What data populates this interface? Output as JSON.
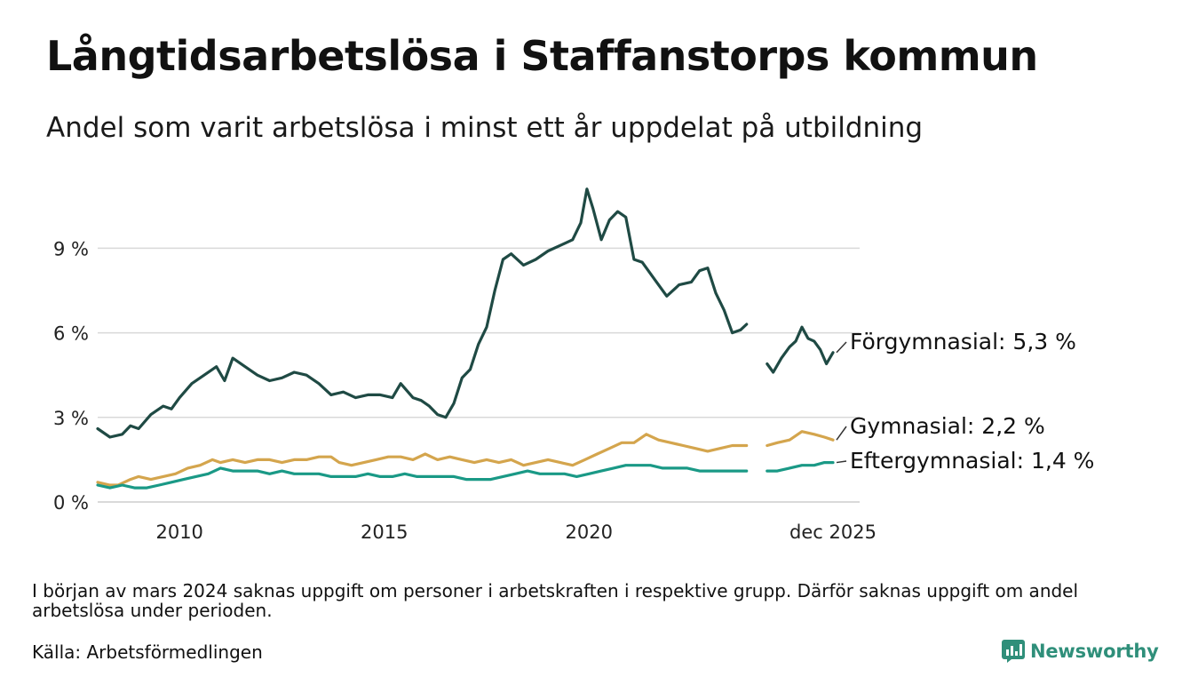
{
  "header": {
    "title": "Långtidsarbetslösa i Staffanstorps kommun",
    "subtitle": "Andel som varit arbetslösa i minst ett år uppdelat på utbildning"
  },
  "footer": {
    "note": "I början av mars 2024 saknas uppgift om personer i arbetskraften i respektive grupp. Därför saknas uppgift om andel arbetslösa under perioden.",
    "source": "Källa: Arbetsförmedlingen",
    "brand": "Newsworthy"
  },
  "colors": {
    "forgymnasial": "#1f4a44",
    "gymnasial": "#d4a54d",
    "eftergymnasial": "#1a9986",
    "grid": "#d9d9d9",
    "brand": "#2f8f7a"
  },
  "chart_data": {
    "type": "line",
    "title": "Långtidsarbetslösa i Staffanstorps kommun",
    "xlabel": "",
    "ylabel": "",
    "ylim": [
      0,
      11.5
    ],
    "xlim": [
      2008.0,
      2025.96
    ],
    "y_ticks": [
      {
        "value": 0,
        "label": "0 %"
      },
      {
        "value": 3,
        "label": "3 %"
      },
      {
        "value": 6,
        "label": "6 %"
      },
      {
        "value": 9,
        "label": "9 %"
      }
    ],
    "x_ticks": [
      {
        "value": 2010,
        "label": "2010"
      },
      {
        "value": 2015,
        "label": "2015"
      },
      {
        "value": 2020,
        "label": "2020"
      },
      {
        "value": 2025.96,
        "label": "dec 2025"
      }
    ],
    "grid": true,
    "gap": {
      "from": 2024.0,
      "to": 2024.35
    },
    "series": [
      {
        "name": "Förgymnasial",
        "end_label": "Förgymnasial: 5,3 %",
        "color_key": "forgymnasial",
        "points": [
          [
            2008.0,
            2.6
          ],
          [
            2008.3,
            2.3
          ],
          [
            2008.6,
            2.4
          ],
          [
            2008.8,
            2.7
          ],
          [
            2009.0,
            2.6
          ],
          [
            2009.3,
            3.1
          ],
          [
            2009.6,
            3.4
          ],
          [
            2009.8,
            3.3
          ],
          [
            2010.0,
            3.7
          ],
          [
            2010.3,
            4.2
          ],
          [
            2010.6,
            4.5
          ],
          [
            2010.9,
            4.8
          ],
          [
            2011.1,
            4.3
          ],
          [
            2011.3,
            5.1
          ],
          [
            2011.6,
            4.8
          ],
          [
            2011.9,
            4.5
          ],
          [
            2012.2,
            4.3
          ],
          [
            2012.5,
            4.4
          ],
          [
            2012.8,
            4.6
          ],
          [
            2013.1,
            4.5
          ],
          [
            2013.4,
            4.2
          ],
          [
            2013.7,
            3.8
          ],
          [
            2014.0,
            3.9
          ],
          [
            2014.3,
            3.7
          ],
          [
            2014.6,
            3.8
          ],
          [
            2014.9,
            3.8
          ],
          [
            2015.2,
            3.7
          ],
          [
            2015.4,
            4.2
          ],
          [
            2015.7,
            3.7
          ],
          [
            2015.9,
            3.6
          ],
          [
            2016.1,
            3.4
          ],
          [
            2016.3,
            3.1
          ],
          [
            2016.5,
            3.0
          ],
          [
            2016.7,
            3.5
          ],
          [
            2016.9,
            4.4
          ],
          [
            2017.1,
            4.7
          ],
          [
            2017.3,
            5.6
          ],
          [
            2017.5,
            6.2
          ],
          [
            2017.7,
            7.5
          ],
          [
            2017.9,
            8.6
          ],
          [
            2018.1,
            8.8
          ],
          [
            2018.4,
            8.4
          ],
          [
            2018.7,
            8.6
          ],
          [
            2019.0,
            8.9
          ],
          [
            2019.3,
            9.1
          ],
          [
            2019.6,
            9.3
          ],
          [
            2019.8,
            9.9
          ],
          [
            2019.95,
            11.1
          ],
          [
            2020.1,
            10.4
          ],
          [
            2020.3,
            9.3
          ],
          [
            2020.5,
            10.0
          ],
          [
            2020.7,
            10.3
          ],
          [
            2020.9,
            10.1
          ],
          [
            2021.1,
            8.6
          ],
          [
            2021.3,
            8.5
          ],
          [
            2021.6,
            7.9
          ],
          [
            2021.9,
            7.3
          ],
          [
            2022.2,
            7.7
          ],
          [
            2022.5,
            7.8
          ],
          [
            2022.7,
            8.2
          ],
          [
            2022.9,
            8.3
          ],
          [
            2023.1,
            7.4
          ],
          [
            2023.3,
            6.8
          ],
          [
            2023.5,
            6.0
          ],
          [
            2023.7,
            6.1
          ],
          [
            2023.85,
            6.3
          ],
          [
            2024.35,
            4.9
          ],
          [
            2024.5,
            4.6
          ],
          [
            2024.7,
            5.1
          ],
          [
            2024.9,
            5.5
          ],
          [
            2025.05,
            5.7
          ],
          [
            2025.2,
            6.2
          ],
          [
            2025.35,
            5.8
          ],
          [
            2025.5,
            5.7
          ],
          [
            2025.65,
            5.4
          ],
          [
            2025.8,
            4.9
          ],
          [
            2025.96,
            5.3
          ]
        ]
      },
      {
        "name": "Gymnasial",
        "end_label": "Gymnasial: 2,2 %",
        "color_key": "gymnasial",
        "points": [
          [
            2008.0,
            0.7
          ],
          [
            2008.3,
            0.6
          ],
          [
            2008.5,
            0.6
          ],
          [
            2008.8,
            0.8
          ],
          [
            2009.0,
            0.9
          ],
          [
            2009.3,
            0.8
          ],
          [
            2009.6,
            0.9
          ],
          [
            2009.9,
            1.0
          ],
          [
            2010.2,
            1.2
          ],
          [
            2010.5,
            1.3
          ],
          [
            2010.8,
            1.5
          ],
          [
            2011.0,
            1.4
          ],
          [
            2011.3,
            1.5
          ],
          [
            2011.6,
            1.4
          ],
          [
            2011.9,
            1.5
          ],
          [
            2012.2,
            1.5
          ],
          [
            2012.5,
            1.4
          ],
          [
            2012.8,
            1.5
          ],
          [
            2013.1,
            1.5
          ],
          [
            2013.4,
            1.6
          ],
          [
            2013.7,
            1.6
          ],
          [
            2013.9,
            1.4
          ],
          [
            2014.2,
            1.3
          ],
          [
            2014.5,
            1.4
          ],
          [
            2014.8,
            1.5
          ],
          [
            2015.1,
            1.6
          ],
          [
            2015.4,
            1.6
          ],
          [
            2015.7,
            1.5
          ],
          [
            2016.0,
            1.7
          ],
          [
            2016.3,
            1.5
          ],
          [
            2016.6,
            1.6
          ],
          [
            2016.9,
            1.5
          ],
          [
            2017.2,
            1.4
          ],
          [
            2017.5,
            1.5
          ],
          [
            2017.8,
            1.4
          ],
          [
            2018.1,
            1.5
          ],
          [
            2018.4,
            1.3
          ],
          [
            2018.7,
            1.4
          ],
          [
            2019.0,
            1.5
          ],
          [
            2019.3,
            1.4
          ],
          [
            2019.6,
            1.3
          ],
          [
            2019.9,
            1.5
          ],
          [
            2020.2,
            1.7
          ],
          [
            2020.5,
            1.9
          ],
          [
            2020.8,
            2.1
          ],
          [
            2021.1,
            2.1
          ],
          [
            2021.4,
            2.4
          ],
          [
            2021.7,
            2.2
          ],
          [
            2022.0,
            2.1
          ],
          [
            2022.3,
            2.0
          ],
          [
            2022.6,
            1.9
          ],
          [
            2022.9,
            1.8
          ],
          [
            2023.2,
            1.9
          ],
          [
            2023.5,
            2.0
          ],
          [
            2023.85,
            2.0
          ],
          [
            2024.35,
            2.0
          ],
          [
            2024.6,
            2.1
          ],
          [
            2024.9,
            2.2
          ],
          [
            2025.2,
            2.5
          ],
          [
            2025.5,
            2.4
          ],
          [
            2025.75,
            2.3
          ],
          [
            2025.96,
            2.2
          ]
        ]
      },
      {
        "name": "Eftergymnasial",
        "end_label": "Eftergymnasial: 1,4 %",
        "color_key": "eftergymnasial",
        "points": [
          [
            2008.0,
            0.6
          ],
          [
            2008.3,
            0.5
          ],
          [
            2008.6,
            0.6
          ],
          [
            2008.9,
            0.5
          ],
          [
            2009.2,
            0.5
          ],
          [
            2009.5,
            0.6
          ],
          [
            2009.8,
            0.7
          ],
          [
            2010.1,
            0.8
          ],
          [
            2010.4,
            0.9
          ],
          [
            2010.7,
            1.0
          ],
          [
            2011.0,
            1.2
          ],
          [
            2011.3,
            1.1
          ],
          [
            2011.6,
            1.1
          ],
          [
            2011.9,
            1.1
          ],
          [
            2012.2,
            1.0
          ],
          [
            2012.5,
            1.1
          ],
          [
            2012.8,
            1.0
          ],
          [
            2013.1,
            1.0
          ],
          [
            2013.4,
            1.0
          ],
          [
            2013.7,
            0.9
          ],
          [
            2014.0,
            0.9
          ],
          [
            2014.3,
            0.9
          ],
          [
            2014.6,
            1.0
          ],
          [
            2014.9,
            0.9
          ],
          [
            2015.2,
            0.9
          ],
          [
            2015.5,
            1.0
          ],
          [
            2015.8,
            0.9
          ],
          [
            2016.1,
            0.9
          ],
          [
            2016.4,
            0.9
          ],
          [
            2016.7,
            0.9
          ],
          [
            2017.0,
            0.8
          ],
          [
            2017.3,
            0.8
          ],
          [
            2017.6,
            0.8
          ],
          [
            2017.9,
            0.9
          ],
          [
            2018.2,
            1.0
          ],
          [
            2018.5,
            1.1
          ],
          [
            2018.8,
            1.0
          ],
          [
            2019.1,
            1.0
          ],
          [
            2019.4,
            1.0
          ],
          [
            2019.7,
            0.9
          ],
          [
            2020.0,
            1.0
          ],
          [
            2020.3,
            1.1
          ],
          [
            2020.6,
            1.2
          ],
          [
            2020.9,
            1.3
          ],
          [
            2021.2,
            1.3
          ],
          [
            2021.5,
            1.3
          ],
          [
            2021.8,
            1.2
          ],
          [
            2022.1,
            1.2
          ],
          [
            2022.4,
            1.2
          ],
          [
            2022.7,
            1.1
          ],
          [
            2023.0,
            1.1
          ],
          [
            2023.3,
            1.1
          ],
          [
            2023.6,
            1.1
          ],
          [
            2023.85,
            1.1
          ],
          [
            2024.35,
            1.1
          ],
          [
            2024.6,
            1.1
          ],
          [
            2024.9,
            1.2
          ],
          [
            2025.2,
            1.3
          ],
          [
            2025.5,
            1.3
          ],
          [
            2025.75,
            1.4
          ],
          [
            2025.96,
            1.4
          ]
        ]
      }
    ]
  }
}
